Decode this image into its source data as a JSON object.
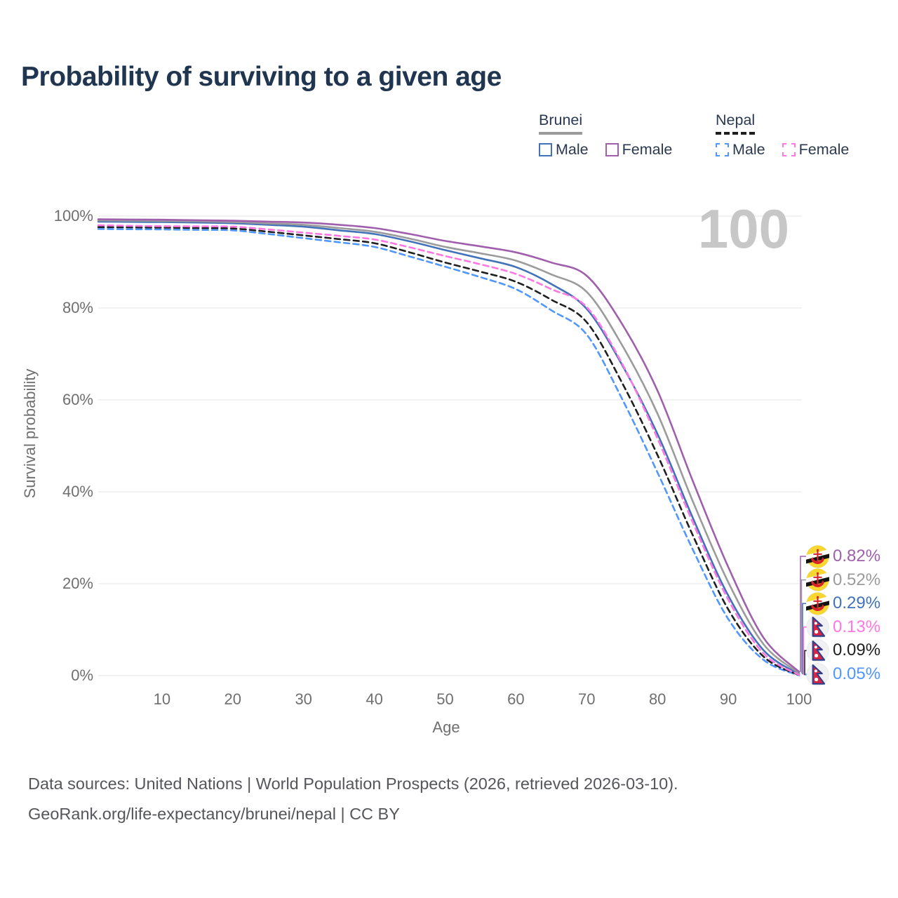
{
  "title": "Probability of surviving to a given age",
  "watermark": "100",
  "legend": {
    "groups": [
      {
        "name": "Brunei",
        "underline": "solid",
        "underline_color": "#9b9b9b",
        "items": [
          {
            "label": "Male",
            "color": "#4272b8",
            "dashed": false
          },
          {
            "label": "Female",
            "color": "#a05fad",
            "dashed": false
          }
        ]
      },
      {
        "name": "Nepal",
        "underline": "dashed",
        "underline_color": "#1f1f1f",
        "items": [
          {
            "label": "Male",
            "color": "#4f97ff",
            "dashed": true
          },
          {
            "label": "Female",
            "color": "#ff77e2",
            "dashed": true
          }
        ]
      }
    ]
  },
  "chart_data": {
    "type": "line",
    "title": "Probability of surviving to a given age",
    "xlabel": "Age",
    "ylabel": "Survival probability",
    "xlim": [
      0,
      100
    ],
    "ylim": [
      0,
      100
    ],
    "grid": "horizontal",
    "legend_position": "top-right",
    "x_ticks": [
      10,
      20,
      30,
      40,
      50,
      60,
      70,
      80,
      90,
      100
    ],
    "y_ticks": [
      "0%",
      "20%",
      "40%",
      "60%",
      "80%",
      "100%"
    ],
    "x": [
      1,
      5,
      10,
      15,
      20,
      25,
      30,
      35,
      40,
      45,
      50,
      55,
      60,
      65,
      70,
      75,
      80,
      85,
      90,
      95,
      100
    ],
    "series": [
      {
        "name": "Brunei Female",
        "country": "brunei",
        "sex": "female",
        "color": "#a05fad",
        "dashed": false,
        "end_label": "0.82%",
        "values": [
          99.3,
          99.25,
          99.2,
          99.1,
          99.0,
          98.8,
          98.6,
          98.1,
          97.4,
          96.1,
          94.6,
          93.4,
          92.1,
          89.9,
          87.0,
          76.5,
          62.0,
          42.3,
          23.6,
          8.2,
          0.82
        ]
      },
      {
        "name": "Brunei Both sexes",
        "country": "brunei",
        "sex": "both",
        "color": "#9b9b9b",
        "dashed": false,
        "end_label": "0.52%",
        "values": [
          99.05,
          99.0,
          98.95,
          98.85,
          98.7,
          98.4,
          98.1,
          97.4,
          96.6,
          95.1,
          93.3,
          91.9,
          90.3,
          87.3,
          83.5,
          71.9,
          57.0,
          37.9,
          20.3,
          6.8,
          0.52
        ]
      },
      {
        "name": "Brunei Male",
        "country": "brunei",
        "sex": "male",
        "color": "#4272b8",
        "dashed": false,
        "end_label": "0.29%",
        "values": [
          98.8,
          98.75,
          98.7,
          98.6,
          98.45,
          98.1,
          97.7,
          96.9,
          96.1,
          94.5,
          92.6,
          90.8,
          88.9,
          85.2,
          79.8,
          67.6,
          52.6,
          34.3,
          17.4,
          5.5,
          0.29
        ]
      },
      {
        "name": "Nepal Female",
        "country": "nepal",
        "sex": "female",
        "color": "#ff77e2",
        "dashed": true,
        "end_label": "0.13%",
        "values": [
          98.0,
          97.9,
          97.8,
          97.75,
          97.7,
          97.1,
          96.4,
          95.7,
          94.9,
          93.2,
          91.3,
          89.5,
          87.4,
          84.1,
          80.2,
          67.9,
          51.6,
          33.3,
          16.5,
          4.8,
          0.13
        ]
      },
      {
        "name": "Nepal Both sexes",
        "country": "nepal",
        "sex": "both",
        "color": "#1f1f1f",
        "dashed": true,
        "end_label": "0.09%",
        "values": [
          97.6,
          97.55,
          97.5,
          97.4,
          97.3,
          96.6,
          95.8,
          95.0,
          94.1,
          92.1,
          89.9,
          87.9,
          85.7,
          81.8,
          76.9,
          63.7,
          48.0,
          30.5,
          14.4,
          4.1,
          0.09
        ]
      },
      {
        "name": "Nepal Male",
        "country": "nepal",
        "sex": "male",
        "color": "#4f97ff",
        "dashed": true,
        "end_label": "0.05%",
        "values": [
          97.2,
          97.15,
          97.1,
          97.0,
          96.9,
          96.1,
          95.2,
          94.3,
          93.3,
          91.2,
          89.0,
          86.7,
          84.1,
          79.5,
          74.2,
          60.2,
          44.2,
          27.4,
          12.3,
          3.4,
          0.05
        ]
      }
    ]
  },
  "right_labels": [
    {
      "value": "0.82%",
      "color": "#a05fad",
      "flag": "brunei"
    },
    {
      "value": "0.52%",
      "color": "#9b9b9b",
      "flag": "brunei"
    },
    {
      "value": "0.29%",
      "color": "#4272b8",
      "flag": "brunei"
    },
    {
      "value": "0.13%",
      "color": "#ff77e2",
      "flag": "nepal"
    },
    {
      "value": "0.09%",
      "color": "#1f1f1f",
      "flag": "nepal"
    },
    {
      "value": "0.05%",
      "color": "#4f97ff",
      "flag": "nepal"
    }
  ],
  "footer": {
    "line1": "Data sources: United Nations | World Population Prospects (2026, retrieved 2026-03-10).",
    "line2": "GeoRank.org/life-expectancy/brunei/nepal | CC BY"
  },
  "colors": {
    "title_text": "#20354f",
    "axis_text": "#6f6f6f",
    "gridline": "#eaeaea",
    "watermark": "#c7c7c7",
    "footer_text": "#55565a",
    "brunei_flag_yellow": "#f8d830",
    "brunei_flag_red": "#d8232a",
    "nepal_flag_crimson": "#dc2440",
    "nepal_flag_blue": "#2b3f8e"
  }
}
